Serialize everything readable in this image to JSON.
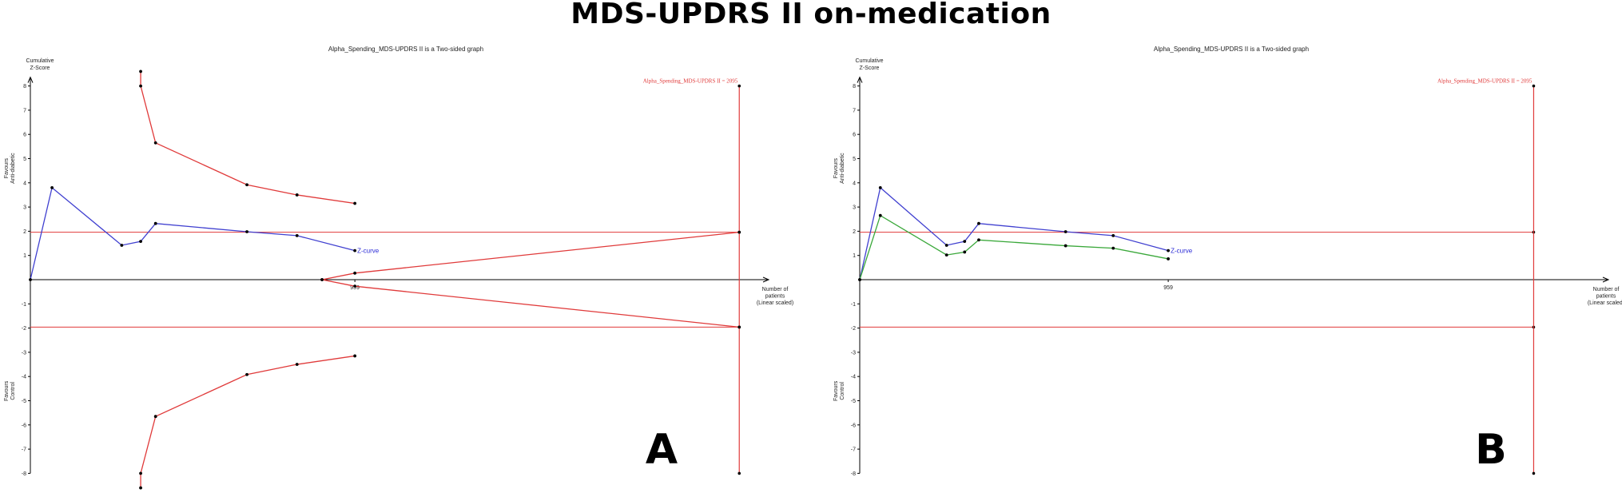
{
  "title": "MDS-UPDRS II on-medication",
  "chart_data": [
    {
      "panel": "A",
      "type": "line",
      "title": "Alpha_Spending_MDS-UPDRS II is a Two-sided graph",
      "ylabel": "Cumulative Z-Score",
      "xlabel": "Number of patients (Linear scaled)",
      "upper_region_label": "Favours Anti-diabetic",
      "lower_region_label": "Favours Control",
      "ylim": [
        -8,
        8
      ],
      "y_ticks": [
        8,
        7,
        6,
        5,
        4,
        3,
        2,
        1,
        -1,
        -2,
        -3,
        -4,
        -5,
        -6,
        -7,
        -8
      ],
      "x_tick_label": "959",
      "ris_label": "Alpha_Spending_MDS-UPDRS II = 2095",
      "series": [
        {
          "name": "Z-curve",
          "x": [
            0,
            64,
            270,
            326,
            370,
            640,
            788,
            959
          ],
          "y": [
            0,
            3.8,
            1.42,
            1.58,
            2.32,
            1.98,
            1.82,
            1.2
          ]
        },
        {
          "x": [
            326,
            326,
            370,
            640,
            788,
            959
          ],
          "y": [
            8.6,
            8.0,
            5.65,
            3.92,
            3.5,
            3.15
          ]
        },
        {
          "x": [
            326,
            326,
            370,
            640,
            788,
            959
          ],
          "y": [
            -8.6,
            -8.0,
            -5.65,
            -3.92,
            -3.5,
            -3.15
          ]
        },
        {
          "x": [
            862,
            959,
            2095
          ],
          "y": [
            0,
            0.27,
            1.96
          ]
        },
        {
          "x": [
            862,
            959,
            2095
          ],
          "y": [
            0,
            -0.27,
            -1.96
          ]
        }
      ],
      "conventional_boundary": [
        1.96,
        -1.96
      ]
    },
    {
      "panel": "B",
      "type": "line",
      "title": "Alpha_Spending_MDS-UPDRS II is a Two-sided graph",
      "ylabel": "Cumulative Z-Score",
      "xlabel": "Number of patients (Linear scaled)",
      "upper_region_label": "Favours Anti-diabetic",
      "lower_region_label": "Favours Control",
      "ylim": [
        -8,
        8
      ],
      "y_ticks": [
        8,
        7,
        6,
        5,
        4,
        3,
        2,
        1,
        -1,
        -2,
        -3,
        -4,
        -5,
        -6,
        -7,
        -8
      ],
      "x_tick_label": "959",
      "ris_label": "Alpha_Spending_MDS-UPDRS II = 2095",
      "series": [
        {
          "name": "Z-curve",
          "x": [
            0,
            64,
            270,
            326,
            370,
            640,
            788,
            959
          ],
          "y": [
            0,
            3.8,
            1.42,
            1.58,
            2.32,
            1.98,
            1.82,
            1.2
          ]
        },
        {
          "x": [
            0,
            64,
            270,
            326,
            370,
            640,
            788,
            959
          ],
          "y": [
            0,
            2.65,
            1.02,
            1.14,
            1.64,
            1.4,
            1.3,
            0.86
          ]
        }
      ],
      "conventional_boundary": [
        1.96,
        -1.96
      ]
    }
  ],
  "colors": {
    "zcurve": "#4040d0",
    "boundary": "#e03a3a",
    "secondary": "#3aa83a",
    "marker": "#000000"
  }
}
